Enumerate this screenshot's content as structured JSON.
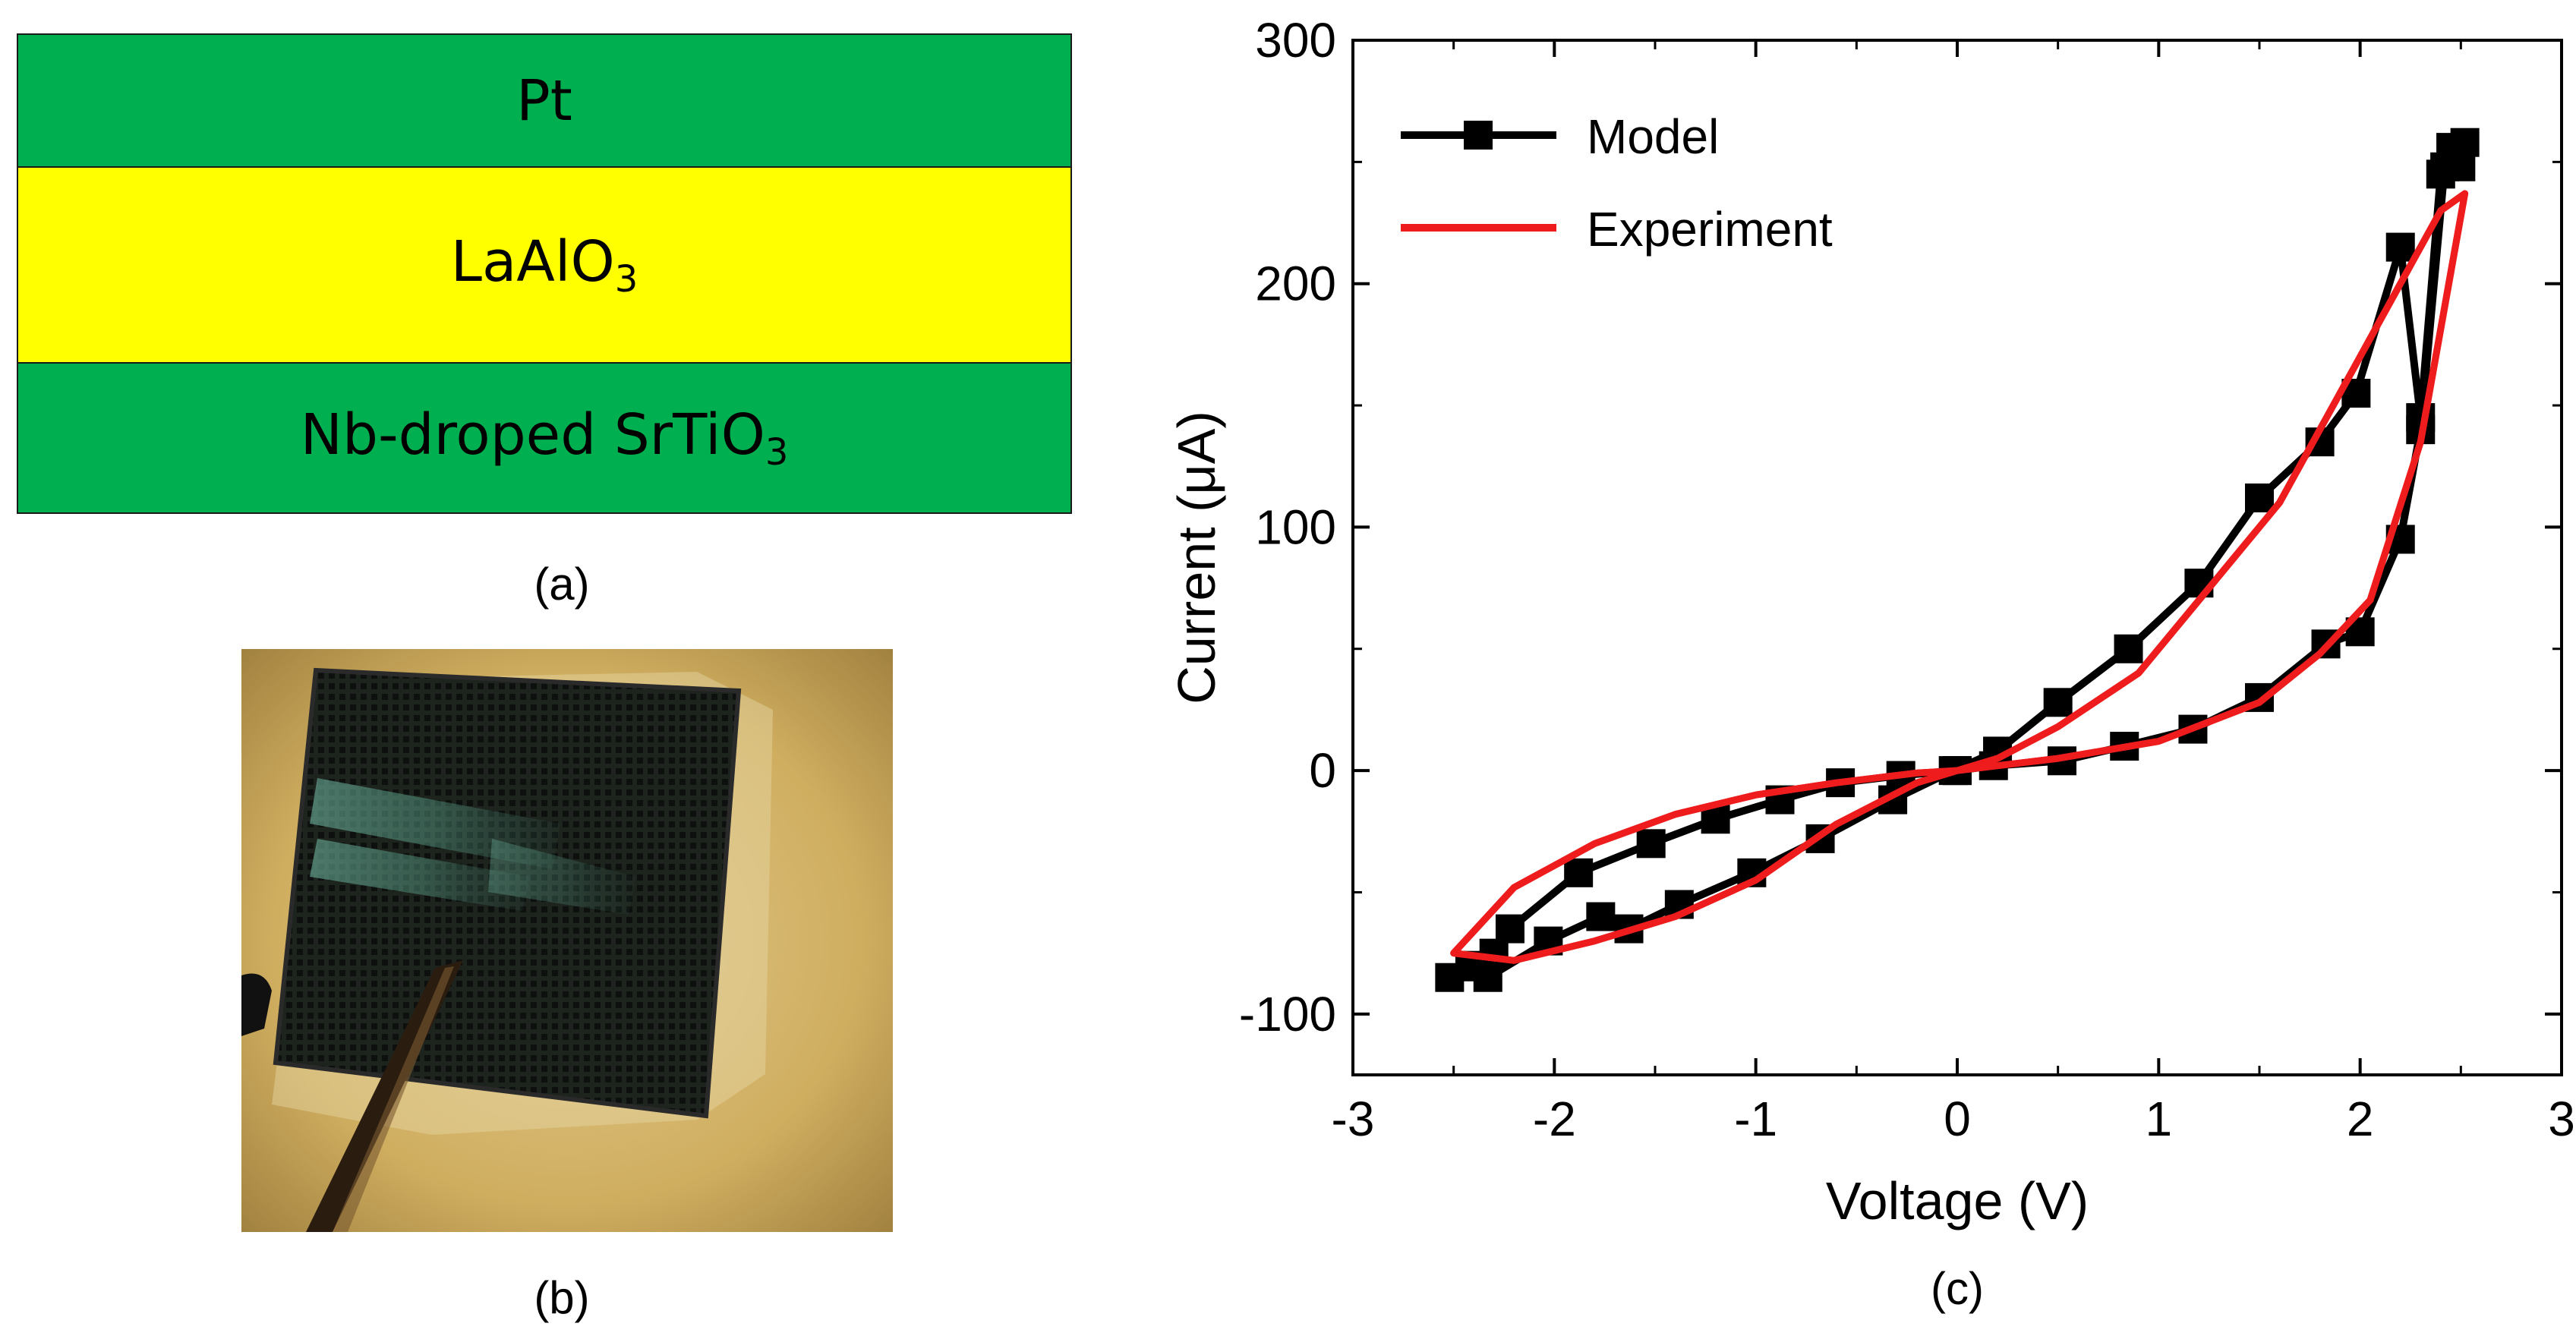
{
  "panel_a": {
    "layers": [
      {
        "name": "Pt",
        "sub": "",
        "color": "#00b050"
      },
      {
        "name": "LaAlO",
        "sub": "3",
        "color": "#ffff00"
      },
      {
        "name": "Nb-droped SrTiO",
        "sub": "3",
        "color": "#00b050"
      }
    ],
    "caption": "(a)"
  },
  "panel_b": {
    "caption": "(b)"
  },
  "panel_c": {
    "caption": "(c)"
  },
  "chart_data": {
    "type": "line",
    "title": "",
    "xlabel": "Voltage (V)",
    "ylabel": "Current (μA)",
    "xlim": [
      -3,
      3
    ],
    "ylim": [
      -125,
      300
    ],
    "xticks": [
      "-3",
      "-2",
      "-1",
      "0",
      "1",
      "2",
      "3"
    ],
    "yticks": [
      "-100",
      "0",
      "100",
      "200",
      "300"
    ],
    "legend": "top-left",
    "series": [
      {
        "name": "Model",
        "color": "#000000",
        "marker": "square",
        "x": [
          0,
          0.18,
          0.52,
          0.83,
          1.17,
          1.5,
          1.83,
          2.0,
          2.2,
          2.3,
          2.42,
          2.52,
          2.5,
          2.45,
          2.4,
          2.3,
          2.2,
          1.98,
          1.8,
          1.5,
          1.2,
          0.85,
          0.5,
          0.2,
          -0.02,
          -0.32,
          -0.68,
          -1.02,
          -1.38,
          -1.63,
          -1.77,
          -2.03,
          -2.33,
          -2.52,
          -2.42,
          -2.3,
          -2.22,
          -1.88,
          -1.52,
          -1.2,
          -0.88,
          -0.58,
          -0.28,
          0
        ],
        "y": [
          0,
          2,
          4,
          10,
          17,
          30,
          52,
          57,
          95,
          140,
          248,
          258,
          248,
          256,
          245,
          145,
          215,
          155,
          135,
          112,
          77,
          50,
          28,
          8,
          0,
          -12,
          -28,
          -42,
          -55,
          -65,
          -60,
          -70,
          -85,
          -85,
          -80,
          -75,
          -65,
          -42,
          -30,
          -20,
          -12,
          -5,
          -2,
          0
        ]
      },
      {
        "name": "Experiment",
        "color": "#ee1c1c",
        "marker": "none",
        "x": [
          0,
          0.5,
          1.0,
          1.5,
          1.8,
          2.05,
          2.3,
          2.52,
          2.4,
          2.2,
          1.9,
          1.6,
          1.2,
          0.9,
          0.5,
          0.2,
          -0.2,
          -0.6,
          -1.0,
          -1.4,
          -1.8,
          -2.2,
          -2.5,
          -2.2,
          -1.8,
          -1.4,
          -1.0,
          -0.6,
          -0.2,
          0
        ],
        "y": [
          0,
          5,
          12,
          28,
          48,
          70,
          135,
          237,
          230,
          200,
          155,
          110,
          70,
          40,
          18,
          5,
          -5,
          -22,
          -45,
          -60,
          -70,
          -78,
          -75,
          -48,
          -30,
          -18,
          -10,
          -5,
          -1,
          0
        ]
      }
    ]
  }
}
